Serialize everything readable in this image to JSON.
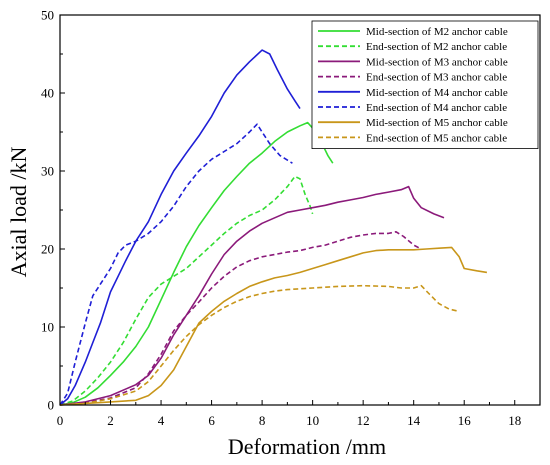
{
  "chart_data": {
    "type": "line",
    "xlabel": "Deformation /mm",
    "ylabel": "Axial load /kN",
    "xlim": [
      0,
      19
    ],
    "ylim": [
      0,
      50
    ],
    "xticks": [
      "0",
      "2",
      "4",
      "6",
      "8",
      "10",
      "12",
      "14",
      "16",
      "18"
    ],
    "yticks": [
      "0",
      "10",
      "20",
      "30",
      "40",
      "50"
    ],
    "legend_position": "top-right",
    "grid": false,
    "series": [
      {
        "name": "Mid-section of M2 anchor cable",
        "color": "#33dd33",
        "dash": "solid",
        "points": [
          [
            0,
            0
          ],
          [
            0.5,
            0.3
          ],
          [
            1,
            1
          ],
          [
            1.5,
            2.2
          ],
          [
            2,
            3.8
          ],
          [
            2.5,
            5.5
          ],
          [
            3,
            7.5
          ],
          [
            3.5,
            10
          ],
          [
            4,
            13.5
          ],
          [
            4.5,
            17
          ],
          [
            5,
            20.3
          ],
          [
            5.5,
            23
          ],
          [
            6,
            25.3
          ],
          [
            6.5,
            27.5
          ],
          [
            7,
            29.3
          ],
          [
            7.5,
            31
          ],
          [
            8,
            32.3
          ],
          [
            8.5,
            33.8
          ],
          [
            9,
            35
          ],
          [
            9.5,
            35.8
          ],
          [
            9.8,
            36.2
          ],
          [
            10,
            35.5
          ],
          [
            10.3,
            34
          ],
          [
            10.6,
            32
          ],
          [
            10.8,
            31
          ]
        ]
      },
      {
        "name": "End-section of M2 anchor cable",
        "color": "#33dd33",
        "dash": "dashed",
        "points": [
          [
            0,
            0
          ],
          [
            0.5,
            0.5
          ],
          [
            1,
            1.8
          ],
          [
            1.5,
            3.5
          ],
          [
            2,
            5.5
          ],
          [
            2.5,
            8
          ],
          [
            3,
            11
          ],
          [
            3.5,
            13.8
          ],
          [
            4,
            15.5
          ],
          [
            4.5,
            16.5
          ],
          [
            5,
            17.5
          ],
          [
            5.5,
            19
          ],
          [
            6,
            20.5
          ],
          [
            6.5,
            22
          ],
          [
            7,
            23.3
          ],
          [
            7.5,
            24.3
          ],
          [
            8,
            25
          ],
          [
            8.5,
            26.3
          ],
          [
            9,
            28
          ],
          [
            9.3,
            29.3
          ],
          [
            9.5,
            29
          ],
          [
            9.7,
            27
          ],
          [
            9.9,
            25.5
          ],
          [
            10,
            24.5
          ]
        ]
      },
      {
        "name": "Mid-section of M3 anchor cable",
        "color": "#8b1a7a",
        "dash": "solid",
        "points": [
          [
            0,
            0
          ],
          [
            1,
            0.4
          ],
          [
            2,
            1.2
          ],
          [
            3,
            2.6
          ],
          [
            3.5,
            3.8
          ],
          [
            4,
            6
          ],
          [
            4.5,
            9
          ],
          [
            5,
            11.5
          ],
          [
            5.5,
            14
          ],
          [
            6,
            16.8
          ],
          [
            6.5,
            19.3
          ],
          [
            7,
            21
          ],
          [
            7.5,
            22.3
          ],
          [
            8,
            23.3
          ],
          [
            8.5,
            24
          ],
          [
            9,
            24.7
          ],
          [
            9.5,
            25
          ],
          [
            10,
            25.3
          ],
          [
            10.5,
            25.6
          ],
          [
            11,
            26
          ],
          [
            11.5,
            26.3
          ],
          [
            12,
            26.6
          ],
          [
            12.5,
            27
          ],
          [
            13,
            27.3
          ],
          [
            13.5,
            27.6
          ],
          [
            13.8,
            28
          ],
          [
            14,
            26.5
          ],
          [
            14.3,
            25.3
          ],
          [
            14.8,
            24.5
          ],
          [
            15.2,
            24
          ]
        ]
      },
      {
        "name": "End-section of M3 anchor cable",
        "color": "#8b1a7a",
        "dash": "dashed",
        "points": [
          [
            0,
            0
          ],
          [
            1,
            0.3
          ],
          [
            2,
            0.9
          ],
          [
            3,
            2.2
          ],
          [
            3.5,
            4
          ],
          [
            4,
            6.5
          ],
          [
            4.5,
            9.5
          ],
          [
            5,
            11.5
          ],
          [
            5.5,
            13.2
          ],
          [
            6,
            15
          ],
          [
            6.5,
            16.5
          ],
          [
            7,
            17.7
          ],
          [
            7.5,
            18.5
          ],
          [
            8,
            19
          ],
          [
            8.5,
            19.3
          ],
          [
            9,
            19.6
          ],
          [
            9.5,
            19.8
          ],
          [
            10,
            20.2
          ],
          [
            10.5,
            20.5
          ],
          [
            11,
            21
          ],
          [
            11.5,
            21.5
          ],
          [
            12,
            21.8
          ],
          [
            12.5,
            22
          ],
          [
            13,
            22
          ],
          [
            13.3,
            22.2
          ],
          [
            13.6,
            21.6
          ],
          [
            14,
            20.5
          ],
          [
            14.3,
            20
          ]
        ]
      },
      {
        "name": "Mid-section of M4 anchor cable",
        "color": "#1f1fd6",
        "dash": "solid",
        "points": [
          [
            0,
            0
          ],
          [
            0.3,
            0.8
          ],
          [
            0.6,
            2.5
          ],
          [
            1,
            5.5
          ],
          [
            1.3,
            8
          ],
          [
            1.6,
            10.5
          ],
          [
            2,
            14.5
          ],
          [
            2.3,
            16.5
          ],
          [
            2.6,
            18.5
          ],
          [
            3,
            21
          ],
          [
            3.5,
            23.5
          ],
          [
            4,
            27
          ],
          [
            4.5,
            30
          ],
          [
            5,
            32.3
          ],
          [
            5.5,
            34.5
          ],
          [
            6,
            37
          ],
          [
            6.5,
            40
          ],
          [
            7,
            42.3
          ],
          [
            7.5,
            44
          ],
          [
            8,
            45.5
          ],
          [
            8.3,
            45
          ],
          [
            8.6,
            43
          ],
          [
            9,
            40.5
          ],
          [
            9.3,
            39
          ],
          [
            9.5,
            38
          ]
        ]
      },
      {
        "name": "End-section of M4 anchor cable",
        "color": "#1f1fd6",
        "dash": "dashed",
        "points": [
          [
            0,
            0
          ],
          [
            0.3,
            1.5
          ],
          [
            0.6,
            5.5
          ],
          [
            1,
            10.5
          ],
          [
            1.3,
            14
          ],
          [
            1.6,
            15.5
          ],
          [
            2,
            17.5
          ],
          [
            2.3,
            19.5
          ],
          [
            2.6,
            20.5
          ],
          [
            3,
            21
          ],
          [
            3.5,
            22
          ],
          [
            4,
            23.5
          ],
          [
            4.5,
            25.5
          ],
          [
            5,
            28
          ],
          [
            5.5,
            30
          ],
          [
            6,
            31.5
          ],
          [
            6.5,
            32.5
          ],
          [
            7,
            33.5
          ],
          [
            7.5,
            35
          ],
          [
            7.8,
            36
          ],
          [
            8,
            35
          ],
          [
            8.3,
            33.5
          ],
          [
            8.7,
            32
          ],
          [
            9.2,
            31
          ]
        ]
      },
      {
        "name": "Mid-section of M5 anchor cable",
        "color": "#c8961a",
        "dash": "solid",
        "points": [
          [
            0,
            0
          ],
          [
            1,
            0.2
          ],
          [
            2,
            0.4
          ],
          [
            3,
            0.6
          ],
          [
            3.5,
            1.2
          ],
          [
            4,
            2.5
          ],
          [
            4.5,
            4.5
          ],
          [
            5,
            7.5
          ],
          [
            5.5,
            10.5
          ],
          [
            6,
            12
          ],
          [
            6.5,
            13.3
          ],
          [
            7,
            14.3
          ],
          [
            7.5,
            15.2
          ],
          [
            8,
            15.8
          ],
          [
            8.5,
            16.3
          ],
          [
            9,
            16.6
          ],
          [
            9.5,
            17
          ],
          [
            10,
            17.5
          ],
          [
            10.5,
            18
          ],
          [
            11,
            18.5
          ],
          [
            11.5,
            19
          ],
          [
            12,
            19.5
          ],
          [
            12.5,
            19.8
          ],
          [
            13,
            19.9
          ],
          [
            14,
            19.9
          ],
          [
            14.5,
            20
          ],
          [
            15,
            20.1
          ],
          [
            15.5,
            20.2
          ],
          [
            15.8,
            19
          ],
          [
            16,
            17.5
          ],
          [
            16.5,
            17.2
          ],
          [
            16.9,
            17
          ]
        ]
      },
      {
        "name": "End-section of M5 anchor cable",
        "color": "#c8961a",
        "dash": "dashed",
        "points": [
          [
            0,
            0
          ],
          [
            1,
            0.2
          ],
          [
            2,
            0.8
          ],
          [
            3,
            1.8
          ],
          [
            3.5,
            3
          ],
          [
            4,
            5
          ],
          [
            4.5,
            7
          ],
          [
            5,
            8.8
          ],
          [
            5.5,
            10.3
          ],
          [
            6,
            11.5
          ],
          [
            6.5,
            12.5
          ],
          [
            7,
            13.3
          ],
          [
            7.5,
            13.9
          ],
          [
            8,
            14.3
          ],
          [
            8.5,
            14.6
          ],
          [
            9,
            14.8
          ],
          [
            10,
            15
          ],
          [
            11,
            15.2
          ],
          [
            12,
            15.3
          ],
          [
            13,
            15.2
          ],
          [
            13.5,
            15
          ],
          [
            14,
            15
          ],
          [
            14.3,
            15.3
          ],
          [
            14.6,
            14.3
          ],
          [
            15,
            13
          ],
          [
            15.4,
            12.3
          ],
          [
            15.8,
            12
          ]
        ]
      }
    ]
  }
}
